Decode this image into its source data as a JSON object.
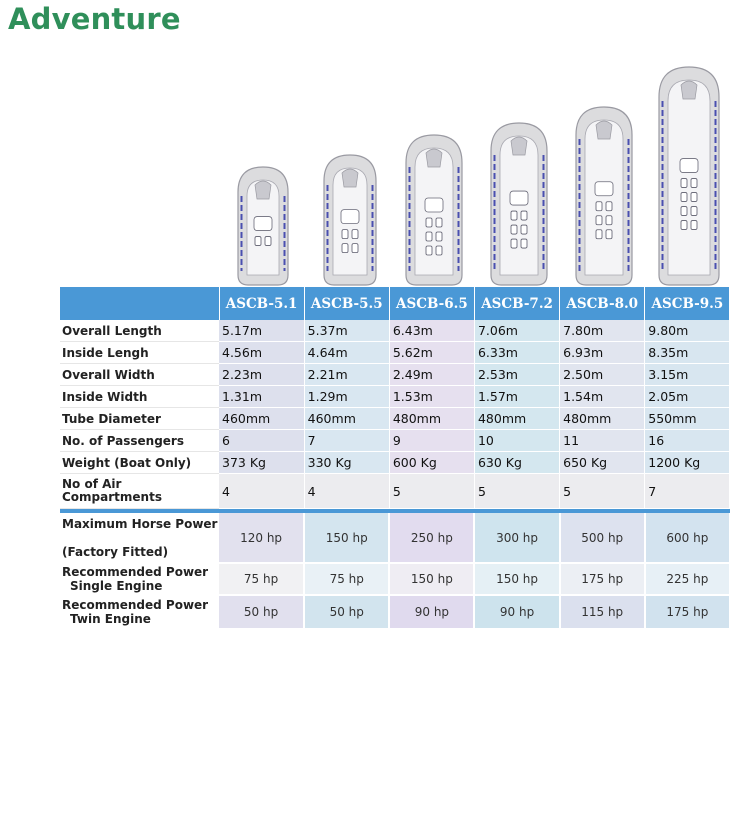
{
  "title": "Adventure",
  "models": [
    "ASCB-5.1",
    "ASCB-5.5",
    "ASCB-6.5",
    "ASCB-7.2",
    "ASCB-8.0",
    "ASCB-9.5"
  ],
  "specs": [
    {
      "label": "Overall Length",
      "values": [
        "5.17m",
        "5.37m",
        "6.43m",
        "7.06m",
        "7.80m",
        "9.80m"
      ]
    },
    {
      "label": "Inside Lengh",
      "values": [
        "4.56m",
        "4.64m",
        "5.62m",
        "6.33m",
        "6.93m",
        "8.35m"
      ]
    },
    {
      "label": "Overall Width",
      "values": [
        "2.23m",
        "2.21m",
        "2.49m",
        "2.53m",
        "2.50m",
        "3.15m"
      ]
    },
    {
      "label": "Inside Width",
      "values": [
        "1.31m",
        "1.29m",
        "1.53m",
        "1.57m",
        "1.54m",
        "2.05m"
      ]
    },
    {
      "label": "Tube Diameter",
      "values": [
        "460mm",
        "460mm",
        "480mm",
        "480mm",
        "480mm",
        "550mm"
      ]
    },
    {
      "label": "No. of Passengers",
      "values": [
        "6",
        "7",
        "9",
        "10",
        "11",
        "16"
      ]
    },
    {
      "label": "Weight (Boat Only)",
      "values": [
        "373 Kg",
        "330 Kg",
        "600 Kg",
        "630 Kg",
        "650 Kg",
        "1200 Kg"
      ]
    }
  ],
  "air": {
    "label_line1": "No of Air",
    "label_line2": "Compartments",
    "values": [
      "4",
      "4",
      "5",
      "5",
      "5",
      "7"
    ]
  },
  "power": [
    {
      "label_line1": "Maximum Horse Power",
      "label_line2": "(Factory Fitted)",
      "values": [
        "120 hp",
        "150 hp",
        "250 hp",
        "300 hp",
        "500 hp",
        "600 hp"
      ]
    },
    {
      "label_line1": "Recommended Power",
      "label_line2": "Single Engine",
      "values": [
        "75 hp",
        "75 hp",
        "150 hp",
        "150 hp",
        "175 hp",
        "225 hp"
      ]
    },
    {
      "label_line1": "Recommended Power",
      "label_line2": "Twin Engine",
      "values": [
        "50 hp",
        "50 hp",
        "90 hp",
        "90 hp",
        "115 hp",
        "175 hp"
      ]
    }
  ]
}
